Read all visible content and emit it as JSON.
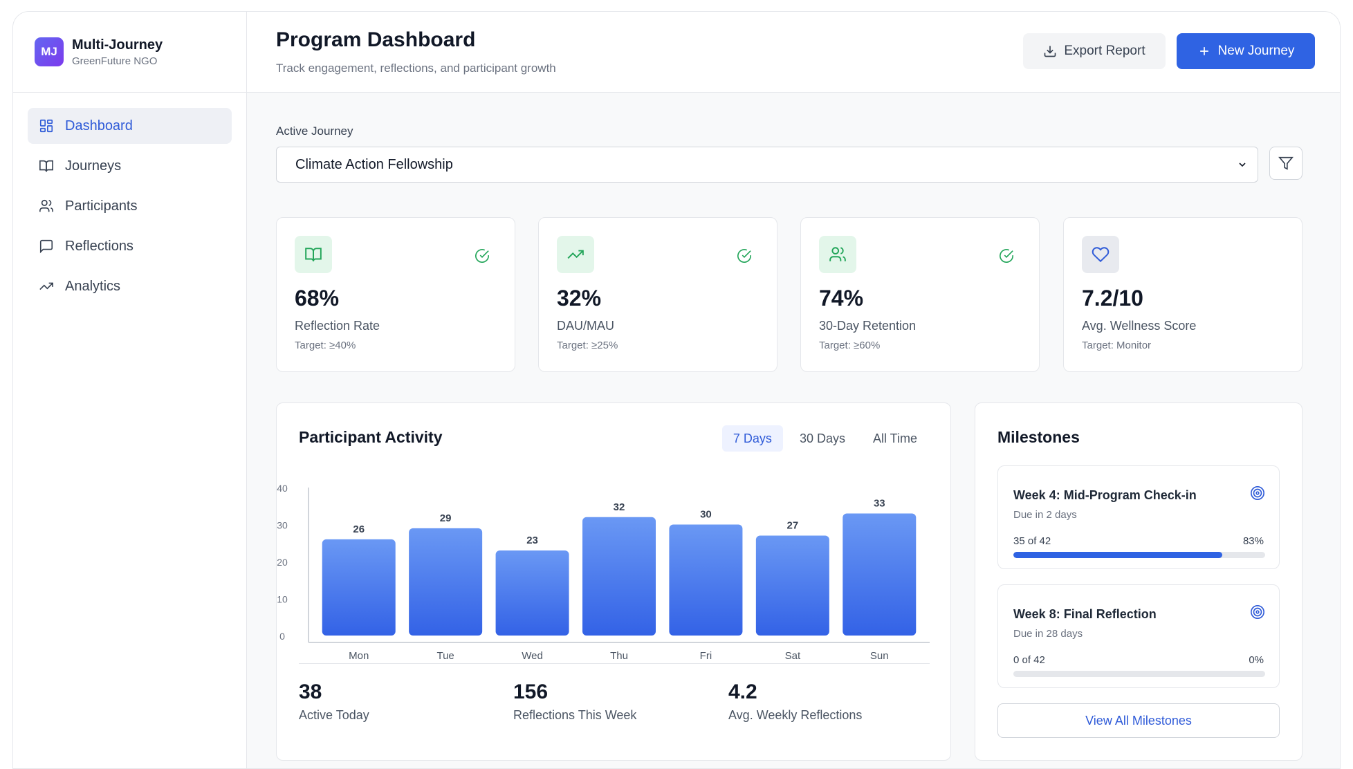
{
  "brand": {
    "logo": "MJ",
    "name": "Multi-Journey",
    "org": "GreenFuture NGO"
  },
  "sidebar": {
    "items": [
      {
        "label": "Dashboard",
        "icon": "dashboard-icon",
        "active": true
      },
      {
        "label": "Journeys",
        "icon": "book-icon"
      },
      {
        "label": "Participants",
        "icon": "users-icon"
      },
      {
        "label": "Reflections",
        "icon": "message-icon"
      },
      {
        "label": "Analytics",
        "icon": "trending-up-icon"
      }
    ]
  },
  "header": {
    "title": "Program Dashboard",
    "subtitle": "Track engagement, reflections, and participant growth",
    "export_label": "Export Report",
    "new_label": "New Journey"
  },
  "journey_select": {
    "label": "Active Journey",
    "value": "Climate Action Fellowship"
  },
  "metrics": [
    {
      "value": "68%",
      "label": "Reflection Rate",
      "target": "Target: ≥40%",
      "icon": "book-icon",
      "checked": true
    },
    {
      "value": "32%",
      "label": "DAU/MAU",
      "target": "Target: ≥25%",
      "icon": "trending-up-icon",
      "checked": true
    },
    {
      "value": "74%",
      "label": "30-Day Retention",
      "target": "Target: ≥60%",
      "icon": "users-icon",
      "checked": true
    },
    {
      "value": "7.2/10",
      "label": "Avg. Wellness Score",
      "target": "Target: Monitor",
      "icon": "heart-icon",
      "checked": false
    }
  ],
  "activity": {
    "title": "Participant Activity",
    "ranges": [
      "7 Days",
      "30 Days",
      "All Time"
    ],
    "active_range": "7 Days",
    "stats": [
      {
        "value": "38",
        "label": "Active Today"
      },
      {
        "value": "156",
        "label": "Reflections This Week"
      },
      {
        "value": "4.2",
        "label": "Avg. Weekly Reflections"
      }
    ]
  },
  "chart_data": {
    "type": "bar",
    "categories": [
      "Mon",
      "Tue",
      "Wed",
      "Thu",
      "Fri",
      "Sat",
      "Sun"
    ],
    "values": [
      26,
      29,
      23,
      32,
      30,
      27,
      33
    ],
    "yticks": [
      0,
      10,
      20,
      30,
      40
    ],
    "ylim": [
      0,
      40
    ],
    "title": "",
    "xlabel": "",
    "ylabel": "",
    "grid": false,
    "bar_color": "#3f72ee"
  },
  "milestones": {
    "title": "Milestones",
    "items": [
      {
        "name": "Week 4: Mid-Program Check-in",
        "due": "Due in 2 days",
        "count": "35 of 42",
        "percent_label": "83%",
        "progress": 0.83
      },
      {
        "name": "Week 8: Final Reflection",
        "due": "Due in 28 days",
        "count": "0 of 42",
        "percent_label": "0%",
        "progress": 0
      }
    ],
    "link_label": "View All Milestones"
  },
  "colors": {
    "accent": "#2f63e3",
    "green_bg": "#e3f6ea",
    "green": "#22a559",
    "gray_bg": "#e8eaef"
  }
}
